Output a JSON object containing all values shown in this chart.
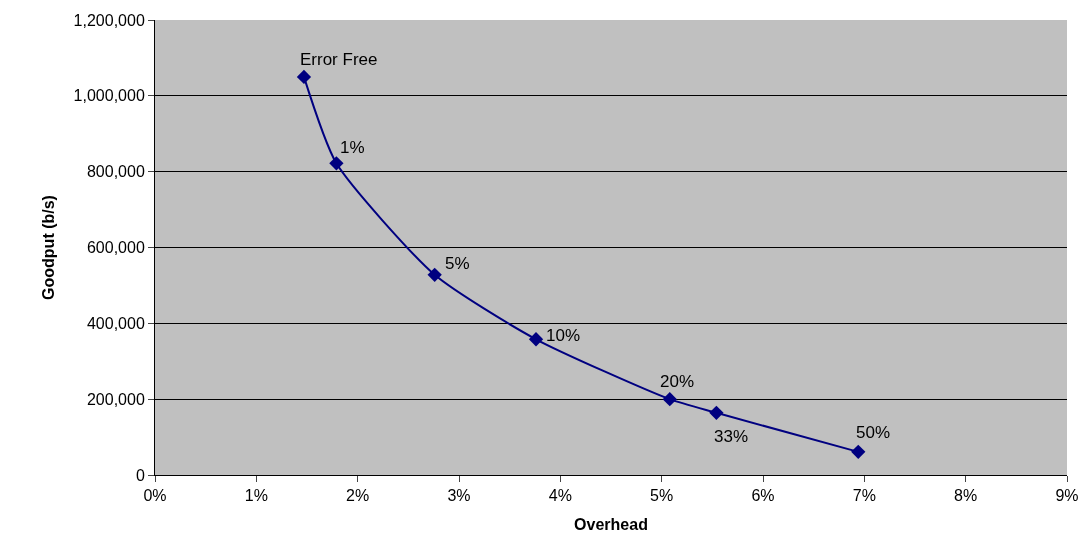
{
  "chart_data": {
    "type": "line",
    "xlabel": "Overhead",
    "ylabel": "Goodput (b/s)",
    "x": [
      1.47,
      1.79,
      2.76,
      3.76,
      5.08,
      5.54,
      6.94
    ],
    "series": [
      {
        "color": "#000080",
        "values": [
          1050000,
          822000,
          528000,
          358000,
          200000,
          164000,
          61000
        ]
      }
    ],
    "marker": "diamond",
    "line_style": "solid",
    "grid": "y",
    "xlim": [
      0,
      9
    ],
    "xticks": [
      {
        "value": 0,
        "label": "0%"
      },
      {
        "value": 1,
        "label": "1%"
      },
      {
        "value": 2,
        "label": "2%"
      },
      {
        "value": 3,
        "label": "3%"
      },
      {
        "value": 4,
        "label": "4%"
      },
      {
        "value": 5,
        "label": "5%"
      },
      {
        "value": 6,
        "label": "6%"
      },
      {
        "value": 7,
        "label": "7%"
      },
      {
        "value": 8,
        "label": "8%"
      },
      {
        "value": 9,
        "label": "9%"
      }
    ],
    "ylim": [
      0,
      1200000
    ],
    "yticks": [
      {
        "value": 0,
        "label": "0"
      },
      {
        "value": 200000,
        "label": "200,000"
      },
      {
        "value": 400000,
        "label": "400,000"
      },
      {
        "value": 600000,
        "label": "600,000"
      },
      {
        "value": 800000,
        "label": "800,000"
      },
      {
        "value": 1000000,
        "label": "1,000,000"
      },
      {
        "value": 1200000,
        "label": "1,200,000"
      }
    ],
    "annotations": [
      {
        "text": "Error Free",
        "x": 1.47,
        "y": 1050000
      },
      {
        "text": "1%",
        "x": 1.79,
        "y": 822000
      },
      {
        "text": "5%",
        "x": 2.76,
        "y": 528000
      },
      {
        "text": "10%",
        "x": 3.76,
        "y": 358000
      },
      {
        "text": "20%",
        "x": 5.08,
        "y": 200000
      },
      {
        "text": "33%",
        "x": 5.54,
        "y": 164000
      },
      {
        "text": "50%",
        "x": 6.94,
        "y": 61000
      }
    ]
  }
}
